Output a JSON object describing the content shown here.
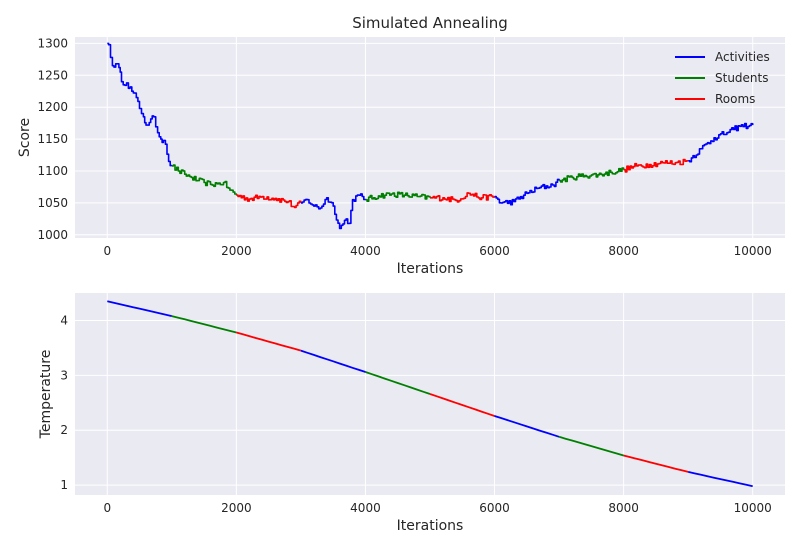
{
  "figure": {
    "background": "#ffffff",
    "axes_facecolor": "#EAEAF2",
    "grid_color": "#ffffff",
    "text_color": "#262626"
  },
  "chart_data": [
    {
      "type": "line",
      "title": "Simulated Annealing",
      "xlabel": "Iterations",
      "ylabel": "Score",
      "xlim": [
        -500,
        10500
      ],
      "ylim": [
        995,
        1310
      ],
      "x_ticks": [
        0,
        2000,
        4000,
        6000,
        8000,
        10000
      ],
      "y_ticks": [
        1000,
        1050,
        1100,
        1150,
        1200,
        1250,
        1300
      ],
      "grid": true,
      "legend": {
        "position": "top-right",
        "entries": [
          {
            "label": "Activities",
            "color": "#0000ff"
          },
          {
            "label": "Students",
            "color": "#008000"
          },
          {
            "label": "Rooms",
            "color": "#ff0000"
          }
        ]
      },
      "color_cycle": [
        "#0000ff",
        "#008000",
        "#ff0000"
      ],
      "segment_length": 1000,
      "series_anchor_points": [
        [
          0,
          1300
        ],
        [
          20,
          1298
        ],
        [
          50,
          1278
        ],
        [
          80,
          1265
        ],
        [
          130,
          1268
        ],
        [
          180,
          1262
        ],
        [
          220,
          1240
        ],
        [
          300,
          1238
        ],
        [
          380,
          1225
        ],
        [
          450,
          1215
        ],
        [
          500,
          1198
        ],
        [
          560,
          1185
        ],
        [
          600,
          1172
        ],
        [
          650,
          1176
        ],
        [
          720,
          1185
        ],
        [
          780,
          1160
        ],
        [
          830,
          1150
        ],
        [
          870,
          1148
        ],
        [
          900,
          1142
        ],
        [
          950,
          1115
        ],
        [
          1000,
          1108
        ],
        [
          1100,
          1100
        ],
        [
          1200,
          1095
        ],
        [
          1300,
          1090
        ],
        [
          1400,
          1085
        ],
        [
          1500,
          1082
        ],
        [
          1600,
          1079
        ],
        [
          1700,
          1080
        ],
        [
          1800,
          1082
        ],
        [
          1900,
          1070
        ],
        [
          2000,
          1062
        ],
        [
          2200,
          1056
        ],
        [
          2400,
          1060
        ],
        [
          2600,
          1057
        ],
        [
          2800,
          1052
        ],
        [
          2900,
          1043
        ],
        [
          3000,
          1050
        ],
        [
          3100,
          1055
        ],
        [
          3200,
          1045
        ],
        [
          3300,
          1042
        ],
        [
          3400,
          1058
        ],
        [
          3500,
          1045
        ],
        [
          3600,
          1010
        ],
        [
          3700,
          1025
        ],
        [
          3750,
          1018
        ],
        [
          3800,
          1055
        ],
        [
          3900,
          1062
        ],
        [
          4000,
          1055
        ],
        [
          4200,
          1061
        ],
        [
          4400,
          1064
        ],
        [
          4600,
          1062
        ],
        [
          4800,
          1060
        ],
        [
          5000,
          1058
        ],
        [
          5200,
          1058
        ],
        [
          5400,
          1054
        ],
        [
          5600,
          1065
        ],
        [
          5800,
          1058
        ],
        [
          6000,
          1060
        ],
        [
          6100,
          1050
        ],
        [
          6300,
          1052
        ],
        [
          6500,
          1065
        ],
        [
          6700,
          1074
        ],
        [
          6900,
          1078
        ],
        [
          7000,
          1085
        ],
        [
          7200,
          1090
        ],
        [
          7400,
          1093
        ],
        [
          7600,
          1094
        ],
        [
          7800,
          1098
        ],
        [
          8000,
          1102
        ],
        [
          8200,
          1108
        ],
        [
          8400,
          1110
        ],
        [
          8600,
          1113
        ],
        [
          8800,
          1113
        ],
        [
          9000,
          1116
        ],
        [
          9200,
          1135
        ],
        [
          9400,
          1152
        ],
        [
          9600,
          1160
        ],
        [
          9700,
          1165
        ],
        [
          9800,
          1170
        ],
        [
          10000,
          1172
        ]
      ]
    },
    {
      "type": "line",
      "title": "",
      "xlabel": "Iterations",
      "ylabel": "Temperature",
      "xlim": [
        -500,
        10500
      ],
      "ylim": [
        0.82,
        4.5
      ],
      "x_ticks": [
        0,
        2000,
        4000,
        6000,
        8000,
        10000
      ],
      "y_ticks": [
        1,
        2,
        3,
        4
      ],
      "grid": true,
      "color_cycle": [
        "#0000ff",
        "#008000",
        "#ff0000"
      ],
      "segment_length": 1000,
      "series_anchor_points": [
        [
          0,
          4.35
        ],
        [
          1000,
          4.08
        ],
        [
          2000,
          3.78
        ],
        [
          3000,
          3.45
        ],
        [
          4000,
          3.06
        ],
        [
          5000,
          2.66
        ],
        [
          6000,
          2.26
        ],
        [
          7000,
          1.88
        ],
        [
          8000,
          1.54
        ],
        [
          9000,
          1.24
        ],
        [
          10000,
          0.98
        ]
      ]
    }
  ]
}
